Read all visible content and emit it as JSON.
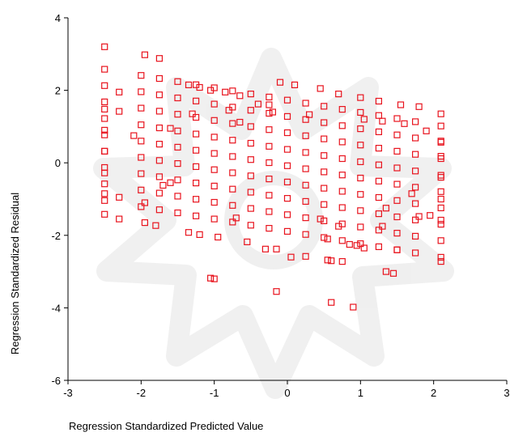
{
  "chart_data": {
    "type": "scatter",
    "title": "",
    "xlabel": "Regression Standardized Predicted Value",
    "ylabel": "Regression Standardized Residual",
    "xlim": [
      -3,
      3
    ],
    "ylim": [
      -6,
      4
    ],
    "xticks": [
      -3,
      -2,
      -1,
      0,
      1,
      2,
      3
    ],
    "yticks": [
      -6,
      -4,
      -2,
      0,
      2,
      4
    ],
    "xtick_labels": [
      "-3",
      "-2",
      "-1",
      "0",
      "1",
      "2",
      "3"
    ],
    "ytick_labels": [
      "-6",
      "-4",
      "-2",
      "0",
      "2",
      "4"
    ],
    "grid": false,
    "legend": false,
    "marker": "hollow-square",
    "marker_color": "#e8131d",
    "axis_color": "#000000",
    "band_slope": -0.34,
    "band_intercepts": [
      -1.89,
      -1.43,
      -0.98,
      -0.53,
      -0.08,
      0.37,
      0.83,
      1.28,
      1.73
    ],
    "band_x_values": [
      -2.5,
      -2.0,
      -1.75,
      -1.5,
      -1.25,
      -1.0,
      -0.75,
      -0.5,
      -0.25,
      0.0,
      0.25,
      0.5,
      0.75,
      1.0,
      1.25,
      1.5,
      1.75,
      2.1
    ],
    "extra_points": [
      [
        -2.5,
        3.2
      ],
      [
        -1.95,
        2.98
      ],
      [
        -1.75,
        2.88
      ],
      [
        -2.3,
        1.95
      ],
      [
        -2.3,
        1.42
      ],
      [
        -2.5,
        1.48
      ],
      [
        -2.5,
        0.9
      ],
      [
        -2.5,
        0.32
      ],
      [
        -2.5,
        -0.28
      ],
      [
        -2.5,
        -0.85
      ],
      [
        -2.5,
        -1.42
      ],
      [
        -2.3,
        -0.95
      ],
      [
        -2.3,
        -1.55
      ],
      [
        -1.95,
        -1.1
      ],
      [
        -1.95,
        -1.65
      ],
      [
        -1.35,
        -1.92
      ],
      [
        -1.2,
        -1.98
      ],
      [
        -0.95,
        -2.05
      ],
      [
        -0.55,
        -2.18
      ],
      [
        -0.3,
        -2.38
      ],
      [
        -0.15,
        -2.38
      ],
      [
        0.05,
        -2.6
      ],
      [
        0.25,
        -2.58
      ],
      [
        0.55,
        -2.68
      ],
      [
        0.6,
        -2.7
      ],
      [
        0.75,
        -2.72
      ],
      [
        0.85,
        -2.25
      ],
      [
        0.95,
        -2.28
      ],
      [
        -1.05,
        -3.18
      ],
      [
        -1.0,
        -3.2
      ],
      [
        -0.15,
        -3.55
      ],
      [
        0.6,
        -3.85
      ],
      [
        0.9,
        -3.98
      ],
      [
        1.35,
        -3.0
      ],
      [
        1.45,
        -3.05
      ],
      [
        2.1,
        -2.72
      ],
      [
        -1.35,
        2.15
      ],
      [
        -1.2,
        2.08
      ],
      [
        -1.05,
        2.0
      ],
      [
        -0.85,
        1.95
      ],
      [
        -0.65,
        1.85
      ],
      [
        -0.4,
        1.62
      ],
      [
        -0.25,
        1.6
      ],
      [
        -0.1,
        2.22
      ],
      [
        0.1,
        2.15
      ],
      [
        0.45,
        2.05
      ],
      [
        0.7,
        1.9
      ],
      [
        1.0,
        1.8
      ],
      [
        1.25,
        1.7
      ],
      [
        1.55,
        1.6
      ],
      [
        1.8,
        1.55
      ],
      [
        2.1,
        1.35
      ],
      [
        1.9,
        0.88
      ],
      [
        -0.8,
        1.45
      ],
      [
        -0.2,
        1.4
      ],
      [
        0.3,
        1.33
      ],
      [
        1.3,
        1.15
      ],
      [
        -1.3,
        1.35
      ],
      [
        1.6,
        1.08
      ],
      [
        -0.65,
        1.12
      ],
      [
        1.05,
        1.2
      ],
      [
        -1.6,
        0.95
      ],
      [
        -2.1,
        0.75
      ],
      [
        2.1,
        0.6
      ],
      [
        2.1,
        0.18
      ],
      [
        2.1,
        -0.4
      ],
      [
        2.1,
        -1.0
      ],
      [
        2.1,
        -1.58
      ],
      [
        1.8,
        -1.48
      ],
      [
        1.95,
        -1.45
      ],
      [
        1.7,
        -0.85
      ],
      [
        1.35,
        -1.25
      ],
      [
        1.3,
        -1.75
      ],
      [
        -1.7,
        -0.62
      ],
      [
        -1.8,
        -1.73
      ],
      [
        -1.6,
        -0.55
      ],
      [
        0.45,
        -1.55
      ],
      [
        0.7,
        -1.75
      ],
      [
        -0.7,
        -1.52
      ],
      [
        0.55,
        -2.1
      ],
      [
        1.05,
        -2.35
      ],
      [
        1.5,
        -2.4
      ]
    ]
  }
}
